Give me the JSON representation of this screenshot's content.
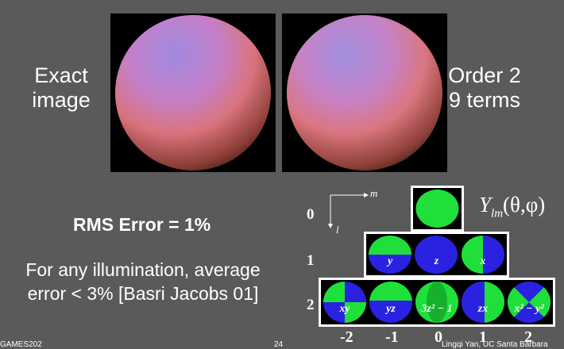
{
  "left_label": {
    "line1": "Exact",
    "line2": "image"
  },
  "right_label": {
    "line1": "Order 2",
    "line2": "9 terms"
  },
  "rms_text": "RMS Error = 1%",
  "illum_text": {
    "line1": "For any illumination, average",
    "line2": "error < 3% [Basri Jacobs 01]"
  },
  "axis": {
    "m_label": "m",
    "l_label": "l"
  },
  "ylm": {
    "Y": "Y",
    "sub": "lm",
    "args": "(θ,φ)"
  },
  "rows": {
    "r0": "0",
    "r1": "1",
    "r2": "2"
  },
  "cols": {
    "c1": "-2",
    "c2": "-1",
    "c3": "0",
    "c4": "1",
    "c5": "2"
  },
  "basis_labels": {
    "row1": [
      "y",
      "z",
      "x"
    ],
    "row2": [
      "xy",
      "yz",
      "3z² − 1",
      "zx",
      "x² − y²"
    ]
  },
  "footer": {
    "course": "GAMES202",
    "page": "24",
    "credit": "Lingqi Yan, UC Santa Barbara"
  },
  "colors": {
    "background": "#5a5a5a",
    "sh_green": "#1fe03a",
    "sh_blue": "#2a22e0"
  }
}
